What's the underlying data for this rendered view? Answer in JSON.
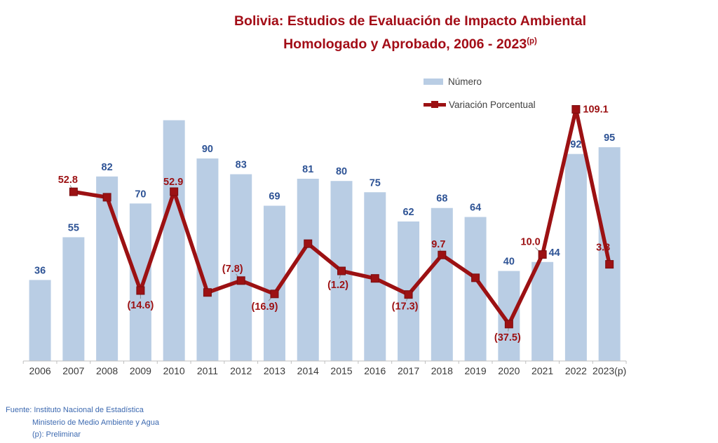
{
  "title": {
    "line1": "Bolivia: Estudios de Evaluación de Impacto Ambiental",
    "line2": "Homologado y Aprobado, 2006 - 2023",
    "line2_sup": "(p)"
  },
  "legend": {
    "bar_label": "Número",
    "line_label": "Variación Porcentual"
  },
  "footer": {
    "line1": "Fuente: Instituto Nacional de Estadística",
    "line2": "Ministerio de Medio Ambiente y Agua",
    "line3": "(p): Preliminar"
  },
  "colors": {
    "bar": "#b9cde4",
    "bar_label": "#2e5395",
    "line": "#9c1113",
    "line_marker_edge": "#7a0d0f",
    "line_label": "#9c1113",
    "title": "#a30d17",
    "footer_text": "#3c69b0",
    "axis": "#bfbfbf",
    "category_label": "#3a3a3a",
    "legend_text": "#3f3f3f",
    "leader": "#8c8c8c"
  },
  "chart_data": {
    "type": "combo-bar-line",
    "title": "Bolivia: Estudios de Evaluación de Impacto Ambiental Homologado y Aprobado, 2006 - 2023(p)",
    "categories": [
      "2006",
      "2007",
      "2008",
      "2009",
      "2010",
      "2011",
      "2012",
      "2013",
      "2014",
      "2015",
      "2016",
      "2017",
      "2018",
      "2019",
      "2020",
      "2021",
      "2022",
      "2023(p)"
    ],
    "series": [
      {
        "name": "Número",
        "type": "bar",
        "values": [
          36,
          55,
          82,
          70,
          107,
          90,
          83,
          69,
          81,
          80,
          75,
          62,
          68,
          64,
          40,
          44,
          92,
          95
        ],
        "data_labels": [
          "36",
          "55",
          "82",
          "70",
          null,
          "90",
          "83",
          "69",
          "81",
          "80",
          "75",
          "62",
          "68",
          "64",
          "40",
          "44",
          "92",
          "95"
        ]
      },
      {
        "name": "Variación Porcentual",
        "type": "line",
        "values": [
          null,
          52.8,
          49.1,
          -14.6,
          52.9,
          -15.9,
          -7.8,
          -16.9,
          17.4,
          -1.2,
          -6.3,
          -17.3,
          9.7,
          -5.9,
          -37.5,
          10.0,
          109.1,
          3.3
        ],
        "data_labels": [
          null,
          "52.8",
          null,
          "(14.6)",
          "52.9",
          null,
          "(7.8)",
          "(16.9)",
          null,
          "(1.2)",
          null,
          "(17.3)",
          "9.7",
          null,
          "(37.5)",
          "10.0",
          "109.1",
          "3.3"
        ]
      }
    ],
    "xlabel": "",
    "ylabel": "",
    "legend_position": "top-right",
    "grid": false,
    "value_axes_visible": false,
    "notes": "Negative variations shown in parentheses; 2010 bar (~107) and markers for 2008, 2011, 2014, 2016, 2019 have no printed data label.",
    "source_note": "Fuente: Instituto Nacional de Estadística; Ministerio de Medio Ambiente y Agua; (p): Preliminar"
  }
}
